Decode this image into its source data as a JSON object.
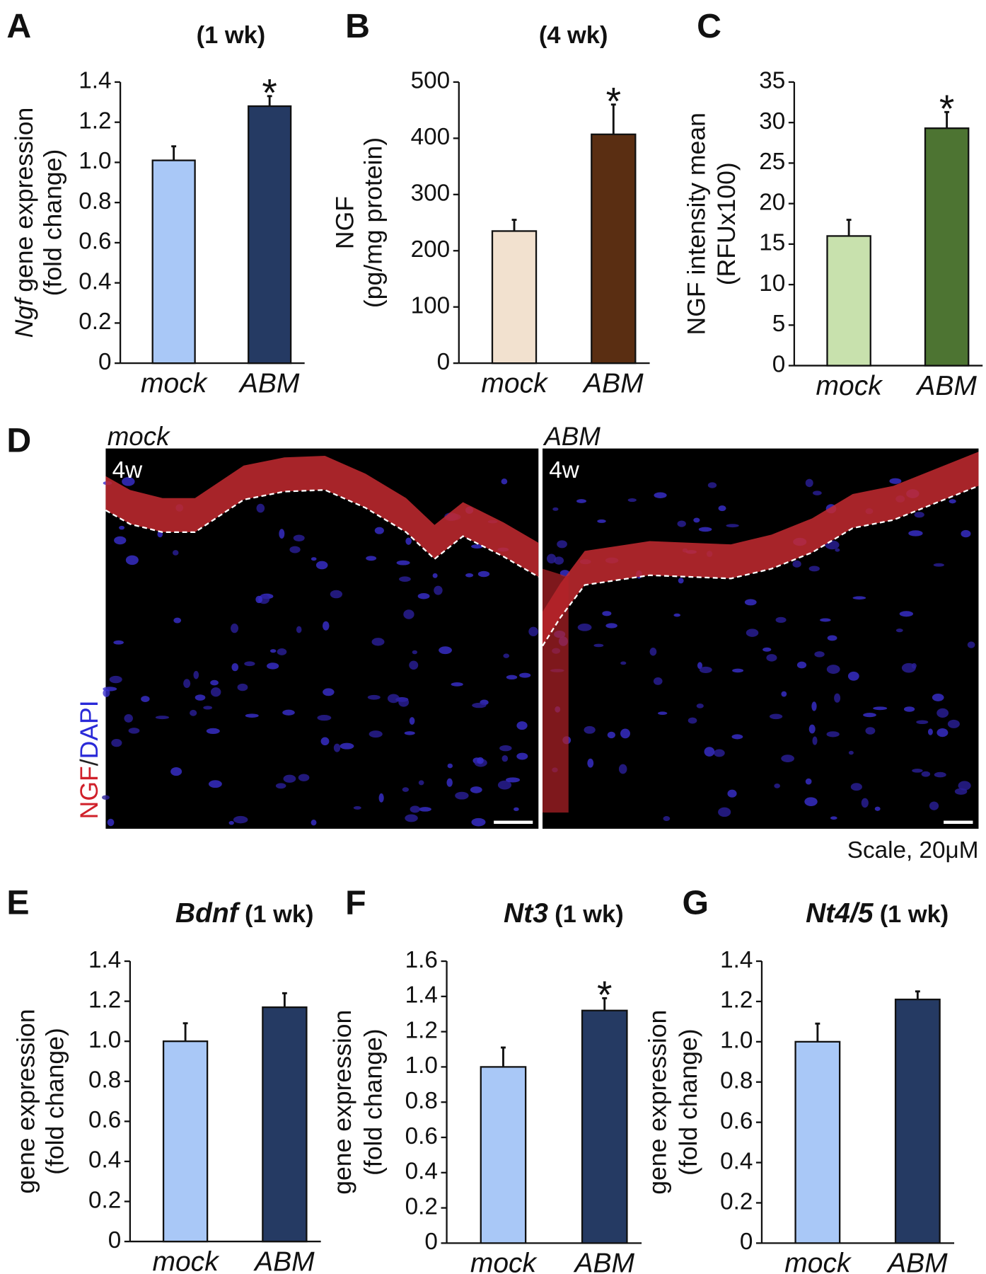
{
  "chart_data": [
    {
      "type": "bar",
      "panel": "A",
      "title": "(1 wk)",
      "ylabel_prefix": "Ngf",
      "ylabel": [
        "gene expression",
        "(fold change)"
      ],
      "categories": [
        "mock",
        "ABM"
      ],
      "values": [
        1.01,
        1.28
      ],
      "errors": [
        0.07,
        0.05
      ],
      "colors": [
        "#a9c8f7",
        "#253a63"
      ],
      "significance": [
        null,
        "*"
      ],
      "ylim": [
        0,
        1.4
      ],
      "yticks": [
        0,
        0.2,
        0.4,
        0.6,
        0.8,
        {
          "value": 1,
          "label": "1.0"
        },
        1.2,
        1.4
      ]
    },
    {
      "type": "bar",
      "panel": "B",
      "title": "(4 wk)",
      "ylabel": [
        "NGF",
        "(pg/mg  protein)"
      ],
      "categories": [
        "mock",
        "ABM"
      ],
      "values": [
        235,
        407
      ],
      "errors": [
        20,
        53
      ],
      "colors": [
        "#f2e1cf",
        "#5a2e12"
      ],
      "significance": [
        null,
        "*"
      ],
      "ylim": [
        0,
        500
      ],
      "yticks": [
        0,
        100,
        200,
        300,
        400,
        500
      ]
    },
    {
      "type": "bar",
      "panel": "C",
      "ylabel": [
        "NGF intensity mean",
        "(RFUx100)"
      ],
      "categories": [
        "mock",
        "ABM"
      ],
      "values": [
        16,
        29.3
      ],
      "errors": [
        2,
        2
      ],
      "colors": [
        "#c8e1ad",
        "#4d7432"
      ],
      "significance": [
        null,
        "*"
      ],
      "ylim": [
        0,
        35
      ],
      "yticks": [
        0,
        5,
        10,
        15,
        20,
        25,
        30,
        35
      ]
    },
    {
      "type": "bar",
      "panel": "E",
      "title_italic": "Bdnf",
      "title": "(1 wk)",
      "ylabel": [
        "gene expression",
        "(fold change)"
      ],
      "categories": [
        "mock",
        "ABM"
      ],
      "values": [
        1.0,
        1.17
      ],
      "errors": [
        0.09,
        0.07
      ],
      "colors": [
        "#a9c8f7",
        "#253a63"
      ],
      "significance": [
        null,
        null
      ],
      "ylim": [
        0,
        1.4
      ],
      "yticks": [
        0,
        0.2,
        0.4,
        0.6,
        0.8,
        {
          "value": 1,
          "label": "1.0"
        },
        1.2,
        1.4
      ]
    },
    {
      "type": "bar",
      "panel": "F",
      "title_italic": "Nt3",
      "title": "(1 wk)",
      "ylabel": [
        "gene expression",
        "(fold change)"
      ],
      "categories": [
        "mock",
        "ABM"
      ],
      "values": [
        1.0,
        1.32
      ],
      "errors": [
        0.11,
        0.07
      ],
      "colors": [
        "#a9c8f7",
        "#253a63"
      ],
      "significance": [
        null,
        "*"
      ],
      "ylim": [
        0,
        1.6
      ],
      "yticks": [
        0,
        0.2,
        0.4,
        0.6,
        0.8,
        {
          "value": 1,
          "label": "1.0"
        },
        1.2,
        1.4,
        1.6
      ]
    },
    {
      "type": "bar",
      "panel": "G",
      "title_italic": "Nt4/5",
      "title": "(1 wk)",
      "ylabel": [
        "gene expression",
        "(fold change)"
      ],
      "categories": [
        "mock",
        "ABM"
      ],
      "values": [
        1.0,
        1.21
      ],
      "errors": [
        0.09,
        0.04
      ],
      "colors": [
        "#a9c8f7",
        "#253a63"
      ],
      "significance": [
        null,
        null
      ],
      "ylim": [
        0,
        1.4
      ],
      "yticks": [
        0,
        0.2,
        0.4,
        0.6,
        0.8,
        {
          "value": 1,
          "label": "1.0"
        },
        1.2,
        1.4
      ]
    }
  ],
  "figure_d": {
    "panel": "D",
    "images": [
      {
        "title": "mock",
        "tag": "4w"
      },
      {
        "title": "ABM",
        "tag": "4w"
      }
    ],
    "stain": [
      "NGF",
      "/",
      "DAPI"
    ],
    "scale": "Scale, 20μM"
  }
}
